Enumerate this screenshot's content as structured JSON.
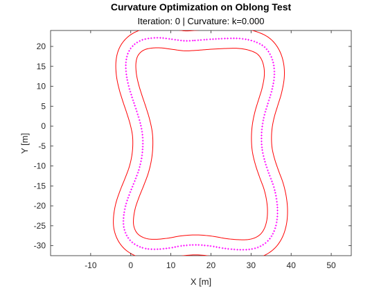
{
  "chart_data": {
    "type": "line",
    "title": "Curvature Optimization on Oblong Test",
    "subtitle": "Iteration: 0 | Curvature: k=0.000",
    "xlabel": "X [m]",
    "ylabel": "Y [m]",
    "xlim": [
      -20,
      55
    ],
    "ylim": [
      -32.5,
      24
    ],
    "xticks": [
      -10,
      0,
      10,
      20,
      30,
      40,
      50
    ],
    "yticks": [
      -30,
      -25,
      -20,
      -15,
      -10,
      -5,
      0,
      5,
      10,
      15,
      20
    ],
    "grid": false,
    "legend": "none",
    "colors": {
      "boundary": "#ff0000",
      "centerline": "#ff00ff"
    },
    "series": [
      {
        "kind": "centerline-points",
        "points": [
          [
            16,
            21.5
          ],
          [
            20,
            21.8
          ],
          [
            24,
            22
          ],
          [
            27,
            22
          ],
          [
            30,
            21.5
          ],
          [
            32.8,
            20.3
          ],
          [
            34.6,
            18.3
          ],
          [
            35.6,
            15.6
          ],
          [
            35.8,
            12.5
          ],
          [
            35.2,
            9
          ],
          [
            34.3,
            6
          ],
          [
            33.4,
            3
          ],
          [
            32.8,
            0
          ],
          [
            32.6,
            -3
          ],
          [
            32.8,
            -6
          ],
          [
            33.5,
            -9
          ],
          [
            34.5,
            -12
          ],
          [
            35.6,
            -15
          ],
          [
            36.3,
            -18
          ],
          [
            36.6,
            -21
          ],
          [
            36.4,
            -24
          ],
          [
            35.6,
            -26.7
          ],
          [
            34.2,
            -28.8
          ],
          [
            32.2,
            -30.2
          ],
          [
            29.8,
            -30.9
          ],
          [
            27,
            -31
          ],
          [
            23.5,
            -30.7
          ],
          [
            20,
            -30.1
          ],
          [
            16.5,
            -29.8
          ],
          [
            13,
            -30
          ],
          [
            9.5,
            -30.6
          ],
          [
            6,
            -30.9
          ],
          [
            3.2,
            -30.6
          ],
          [
            0.8,
            -29.5
          ],
          [
            -0.8,
            -27.8
          ],
          [
            -1.7,
            -25.5
          ],
          [
            -1.8,
            -23
          ],
          [
            -1.3,
            -20
          ],
          [
            -0.3,
            -17
          ],
          [
            0.9,
            -14
          ],
          [
            2,
            -11
          ],
          [
            2.7,
            -8
          ],
          [
            3,
            -5
          ],
          [
            2.9,
            -2
          ],
          [
            2.3,
            1
          ],
          [
            1.4,
            4
          ],
          [
            0.4,
            7
          ],
          [
            -0.5,
            10
          ],
          [
            -1.1,
            13
          ],
          [
            -1.2,
            16
          ],
          [
            -0.6,
            18.5
          ],
          [
            0.8,
            20.4
          ],
          [
            2.8,
            21.6
          ],
          [
            5.3,
            22.1
          ],
          [
            8,
            22.1
          ],
          [
            11,
            21.7
          ],
          [
            13.5,
            21.4
          ],
          [
            16,
            21.5
          ]
        ]
      },
      {
        "kind": "outer-boundary",
        "offset": 2.5,
        "points": [
          [
            16,
            21.5
          ],
          [
            20,
            21.8
          ],
          [
            24,
            22
          ],
          [
            27,
            22
          ],
          [
            30,
            21.5
          ],
          [
            32.8,
            20.3
          ],
          [
            34.6,
            18.3
          ],
          [
            35.6,
            15.6
          ],
          [
            35.8,
            12.5
          ],
          [
            35.2,
            9
          ],
          [
            34.3,
            6
          ],
          [
            33.4,
            3
          ],
          [
            32.8,
            0
          ],
          [
            32.6,
            -3
          ],
          [
            32.8,
            -6
          ],
          [
            33.5,
            -9
          ],
          [
            34.5,
            -12
          ],
          [
            35.6,
            -15
          ],
          [
            36.3,
            -18
          ],
          [
            36.6,
            -21
          ],
          [
            36.4,
            -24
          ],
          [
            35.6,
            -26.7
          ],
          [
            34.2,
            -28.8
          ],
          [
            32.2,
            -30.2
          ],
          [
            29.8,
            -30.9
          ],
          [
            27,
            -31
          ],
          [
            23.5,
            -30.7
          ],
          [
            20,
            -30.1
          ],
          [
            16.5,
            -29.8
          ],
          [
            13,
            -30
          ],
          [
            9.5,
            -30.6
          ],
          [
            6,
            -30.9
          ],
          [
            3.2,
            -30.6
          ],
          [
            0.8,
            -29.5
          ],
          [
            -0.8,
            -27.8
          ],
          [
            -1.7,
            -25.5
          ],
          [
            -1.8,
            -23
          ],
          [
            -1.3,
            -20
          ],
          [
            -0.3,
            -17
          ],
          [
            0.9,
            -14
          ],
          [
            2,
            -11
          ],
          [
            2.7,
            -8
          ],
          [
            3,
            -5
          ],
          [
            2.9,
            -2
          ],
          [
            2.3,
            1
          ],
          [
            1.4,
            4
          ],
          [
            0.4,
            7
          ],
          [
            -0.5,
            10
          ],
          [
            -1.1,
            13
          ],
          [
            -1.2,
            16
          ],
          [
            -0.6,
            18.5
          ],
          [
            0.8,
            20.4
          ],
          [
            2.8,
            21.6
          ],
          [
            5.3,
            22.1
          ],
          [
            8,
            22.1
          ],
          [
            11,
            21.7
          ],
          [
            13.5,
            21.4
          ],
          [
            16,
            21.5
          ]
        ]
      },
      {
        "kind": "inner-boundary",
        "offset": -2.5,
        "points": [
          [
            16,
            21.5
          ],
          [
            20,
            21.8
          ],
          [
            24,
            22
          ],
          [
            27,
            22
          ],
          [
            30,
            21.5
          ],
          [
            32.8,
            20.3
          ],
          [
            34.6,
            18.3
          ],
          [
            35.6,
            15.6
          ],
          [
            35.8,
            12.5
          ],
          [
            35.2,
            9
          ],
          [
            34.3,
            6
          ],
          [
            33.4,
            3
          ],
          [
            32.8,
            0
          ],
          [
            32.6,
            -3
          ],
          [
            32.8,
            -6
          ],
          [
            33.5,
            -9
          ],
          [
            34.5,
            -12
          ],
          [
            35.6,
            -15
          ],
          [
            36.3,
            -18
          ],
          [
            36.6,
            -21
          ],
          [
            36.4,
            -24
          ],
          [
            35.6,
            -26.7
          ],
          [
            34.2,
            -28.8
          ],
          [
            32.2,
            -30.2
          ],
          [
            29.8,
            -30.9
          ],
          [
            27,
            -31
          ],
          [
            23.5,
            -30.7
          ],
          [
            20,
            -30.1
          ],
          [
            16.5,
            -29.8
          ],
          [
            13,
            -30
          ],
          [
            9.5,
            -30.6
          ],
          [
            6,
            -30.9
          ],
          [
            3.2,
            -30.6
          ],
          [
            0.8,
            -29.5
          ],
          [
            -0.8,
            -27.8
          ],
          [
            -1.7,
            -25.5
          ],
          [
            -1.8,
            -23
          ],
          [
            -1.3,
            -20
          ],
          [
            -0.3,
            -17
          ],
          [
            0.9,
            -14
          ],
          [
            2,
            -11
          ],
          [
            2.7,
            -8
          ],
          [
            3,
            -5
          ],
          [
            2.9,
            -2
          ],
          [
            2.3,
            1
          ],
          [
            1.4,
            4
          ],
          [
            0.4,
            7
          ],
          [
            -0.5,
            10
          ],
          [
            -1.1,
            13
          ],
          [
            -1.2,
            16
          ],
          [
            -0.6,
            18.5
          ],
          [
            0.8,
            20.4
          ],
          [
            2.8,
            21.6
          ],
          [
            5.3,
            22.1
          ],
          [
            8,
            22.1
          ],
          [
            11,
            21.7
          ],
          [
            13.5,
            21.4
          ],
          [
            16,
            21.5
          ]
        ]
      }
    ]
  }
}
